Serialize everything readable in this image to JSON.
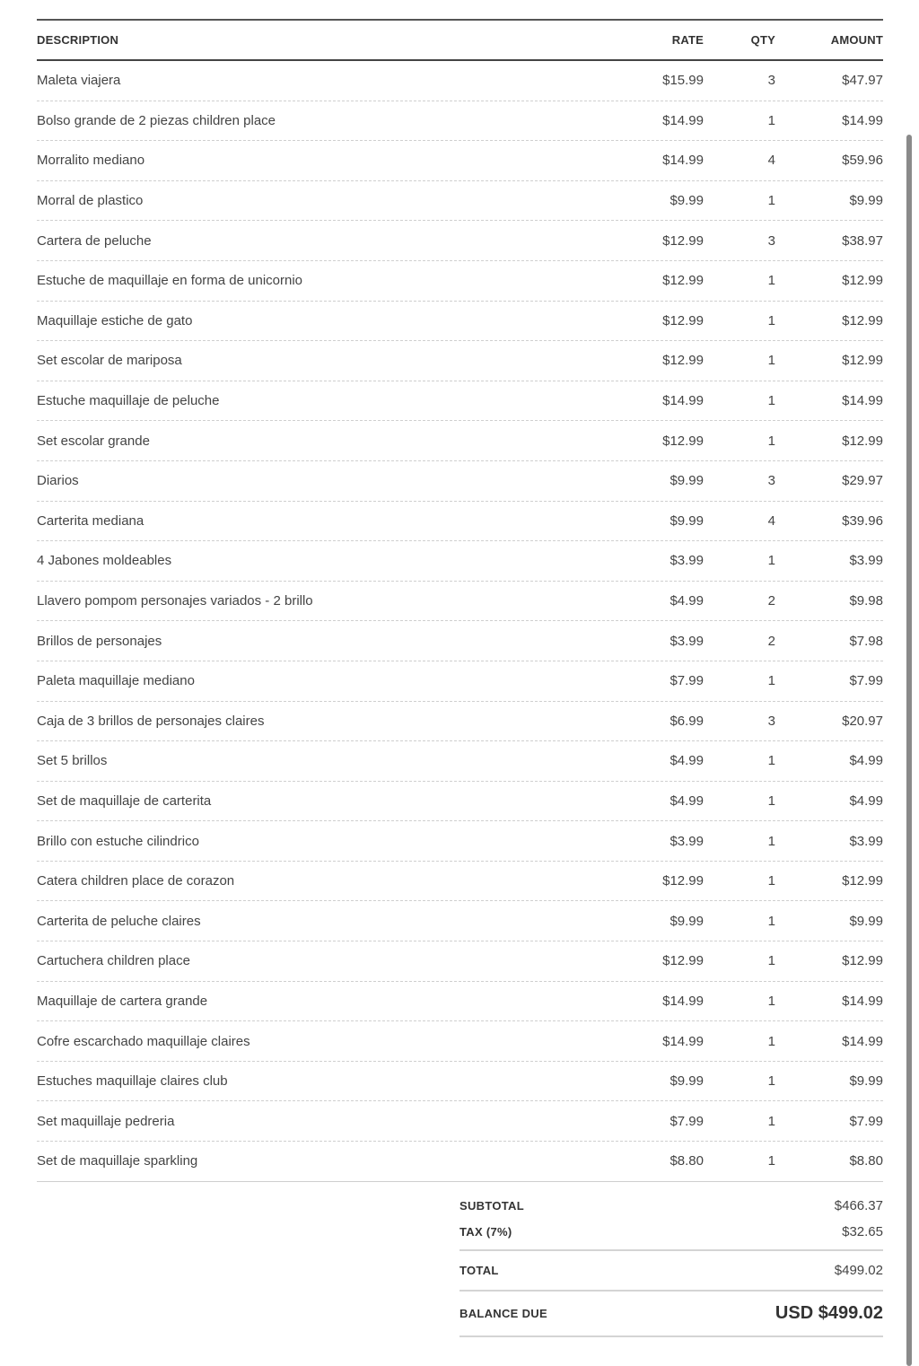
{
  "columns": {
    "description": "DESCRIPTION",
    "rate": "RATE",
    "qty": "QTY",
    "amount": "AMOUNT"
  },
  "items": [
    {
      "description": "Maleta viajera",
      "rate": "$15.99",
      "qty": "3",
      "amount": "$47.97"
    },
    {
      "description": "Bolso grande de 2 piezas children place",
      "rate": "$14.99",
      "qty": "1",
      "amount": "$14.99"
    },
    {
      "description": "Morralito mediano",
      "rate": "$14.99",
      "qty": "4",
      "amount": "$59.96"
    },
    {
      "description": "Morral de plastico",
      "rate": "$9.99",
      "qty": "1",
      "amount": "$9.99"
    },
    {
      "description": "Cartera de peluche",
      "rate": "$12.99",
      "qty": "3",
      "amount": "$38.97"
    },
    {
      "description": "Estuche de maquillaje en forma de unicornio",
      "rate": "$12.99",
      "qty": "1",
      "amount": "$12.99"
    },
    {
      "description": "Maquillaje estiche de gato",
      "rate": "$12.99",
      "qty": "1",
      "amount": "$12.99"
    },
    {
      "description": "Set escolar de mariposa",
      "rate": "$12.99",
      "qty": "1",
      "amount": "$12.99"
    },
    {
      "description": "Estuche maquillaje de peluche",
      "rate": "$14.99",
      "qty": "1",
      "amount": "$14.99"
    },
    {
      "description": "Set escolar grande",
      "rate": "$12.99",
      "qty": "1",
      "amount": "$12.99"
    },
    {
      "description": "Diarios",
      "rate": "$9.99",
      "qty": "3",
      "amount": "$29.97"
    },
    {
      "description": "Carterita mediana",
      "rate": "$9.99",
      "qty": "4",
      "amount": "$39.96"
    },
    {
      "description": "4 Jabones moldeables",
      "rate": "$3.99",
      "qty": "1",
      "amount": "$3.99"
    },
    {
      "description": "Llavero pompom personajes variados - 2 brillo",
      "rate": "$4.99",
      "qty": "2",
      "amount": "$9.98"
    },
    {
      "description": "Brillos de personajes",
      "rate": "$3.99",
      "qty": "2",
      "amount": "$7.98"
    },
    {
      "description": "Paleta maquillaje mediano",
      "rate": "$7.99",
      "qty": "1",
      "amount": "$7.99"
    },
    {
      "description": "Caja de 3 brillos de personajes claires",
      "rate": "$6.99",
      "qty": "3",
      "amount": "$20.97"
    },
    {
      "description": "Set 5 brillos",
      "rate": "$4.99",
      "qty": "1",
      "amount": "$4.99"
    },
    {
      "description": "Set de maquillaje de carterita",
      "rate": "$4.99",
      "qty": "1",
      "amount": "$4.99"
    },
    {
      "description": "Brillo con estuche cilindrico",
      "rate": "$3.99",
      "qty": "1",
      "amount": "$3.99"
    },
    {
      "description": "Catera children place de corazon",
      "rate": "$12.99",
      "qty": "1",
      "amount": "$12.99"
    },
    {
      "description": "Carterita de peluche claires",
      "rate": "$9.99",
      "qty": "1",
      "amount": "$9.99"
    },
    {
      "description": "Cartuchera children place",
      "rate": "$12.99",
      "qty": "1",
      "amount": "$12.99"
    },
    {
      "description": "Maquillaje de cartera grande",
      "rate": "$14.99",
      "qty": "1",
      "amount": "$14.99"
    },
    {
      "description": "Cofre escarchado maquillaje claires",
      "rate": "$14.99",
      "qty": "1",
      "amount": "$14.99"
    },
    {
      "description": "Estuches maquillaje claires club",
      "rate": "$9.99",
      "qty": "1",
      "amount": "$9.99"
    },
    {
      "description": "Set maquillaje pedreria",
      "rate": "$7.99",
      "qty": "1",
      "amount": "$7.99"
    },
    {
      "description": "Set de maquillaje sparkling",
      "rate": "$8.80",
      "qty": "1",
      "amount": "$8.80"
    }
  ],
  "totals": {
    "subtotal_label": "SUBTOTAL",
    "subtotal": "$466.37",
    "tax_label": "TAX (7%)",
    "tax": "$32.65",
    "total_label": "TOTAL",
    "total": "$499.02",
    "balance_label": "BALANCE DUE",
    "balance": "USD $499.02"
  }
}
